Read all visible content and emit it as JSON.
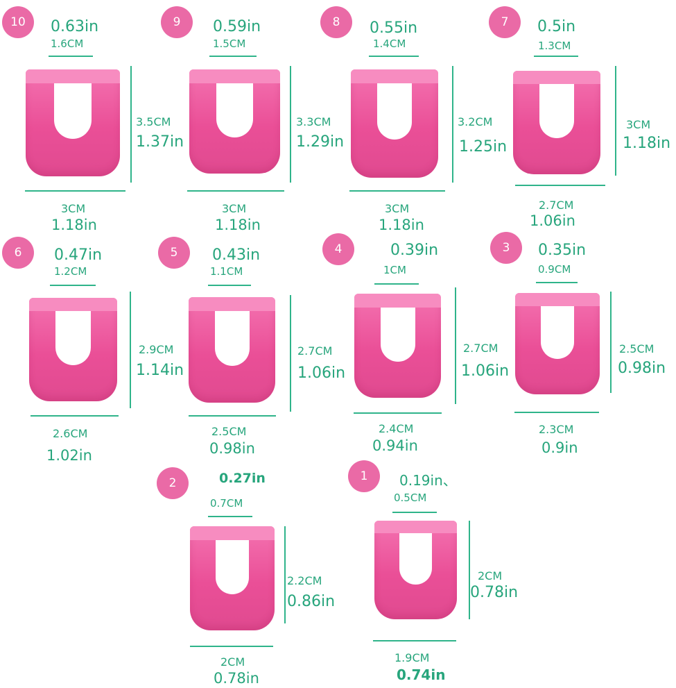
{
  "sizes": [
    {
      "num": "10",
      "tw_in": "0.63in",
      "tw_cm": "1.6CM",
      "h_cm": "3.5CM",
      "h_in": "1.37in",
      "b_cm": "3CM",
      "b_in": "1.18in"
    },
    {
      "num": "9",
      "tw_in": "0.59in",
      "tw_cm": "1.5CM",
      "h_cm": "3.3CM",
      "h_in": "1.29in",
      "b_cm": "3CM",
      "b_in": "1.18in"
    },
    {
      "num": "8",
      "tw_in": "0.55in",
      "tw_cm": "1.4CM",
      "h_cm": "3.2CM",
      "h_in": "1.25in",
      "b_cm": "3CM",
      "b_in": "1.18in"
    },
    {
      "num": "7",
      "tw_in": "0.5in",
      "tw_cm": "1.3CM",
      "h_cm": "3CM",
      "h_in": "1.18in",
      "b_cm": "2.7CM",
      "b_in": "1.06in"
    },
    {
      "num": "6",
      "tw_in": "0.47in",
      "tw_cm": "1.2CM",
      "h_cm": "2.9CM",
      "h_in": "1.14in",
      "b_cm": "2.6CM",
      "b_in": "1.02in"
    },
    {
      "num": "5",
      "tw_in": "0.43in",
      "tw_cm": "1.1CM",
      "h_cm": "2.7CM",
      "h_in": "1.06in",
      "b_cm": "2.5CM",
      "b_in": "0.98in"
    },
    {
      "num": "4",
      "tw_in": "0.39in",
      "tw_cm": "1CM",
      "h_cm": "2.7CM",
      "h_in": "1.06in",
      "b_cm": "2.4CM",
      "b_in": "0.94in"
    },
    {
      "num": "3",
      "tw_in": "0.35in",
      "tw_cm": "0.9CM",
      "h_cm": "2.5CM",
      "h_in": "0.98in",
      "b_cm": "2.3CM",
      "b_in": "0.9in"
    },
    {
      "num": "2",
      "tw_in": "0.27in",
      "tw_cm": "0.7CM",
      "h_cm": "2.2CM",
      "h_in": "0.86in",
      "b_cm": "2CM",
      "b_in": "0.78in"
    },
    {
      "num": "1",
      "tw_in": "0.19in、",
      "tw_cm": "0.5CM",
      "h_cm": "2CM",
      "h_in": "0.78in",
      "b_cm": "1.9CM",
      "b_in": "0.74in"
    }
  ],
  "colors": {
    "badge": "#ea6aa6",
    "guard": "#ea4f97",
    "text": "#27a57c",
    "line": "#2fb48a"
  }
}
